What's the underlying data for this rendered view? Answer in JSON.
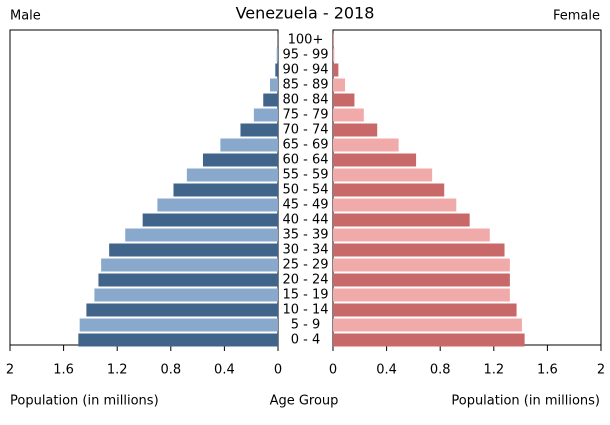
{
  "chart_data": {
    "type": "population-pyramid",
    "title": "Venezuela - 2018",
    "center_label": "Age Group",
    "xlabel": "Population (in millions)",
    "categories": [
      "0 - 4",
      "5 - 9",
      "10 - 14",
      "15 - 19",
      "20 - 24",
      "25 - 29",
      "30 - 34",
      "35 - 39",
      "40 - 44",
      "45 - 49",
      "50 - 54",
      "55 - 59",
      "60 - 64",
      "65 - 69",
      "70 - 74",
      "75 - 79",
      "80 - 84",
      "85 - 89",
      "90 - 94",
      "95 - 99",
      "100+"
    ],
    "series": [
      {
        "name": "Male",
        "colors": [
          "#41648a",
          "#88a9cc"
        ],
        "values": [
          1.49,
          1.48,
          1.43,
          1.37,
          1.34,
          1.32,
          1.26,
          1.14,
          1.01,
          0.9,
          0.78,
          0.68,
          0.56,
          0.43,
          0.28,
          0.18,
          0.11,
          0.06,
          0.02,
          0.01,
          0.002
        ]
      },
      {
        "name": "Female",
        "colors": [
          "#c96868",
          "#f0aaaa"
        ],
        "values": [
          1.43,
          1.41,
          1.37,
          1.32,
          1.32,
          1.32,
          1.28,
          1.17,
          1.02,
          0.92,
          0.83,
          0.74,
          0.62,
          0.49,
          0.33,
          0.23,
          0.16,
          0.09,
          0.04,
          0.01,
          0.005
        ]
      }
    ],
    "xlim": [
      0,
      2
    ],
    "xticks": [
      0,
      0.4,
      0.8,
      1.2,
      1.6,
      2
    ]
  }
}
